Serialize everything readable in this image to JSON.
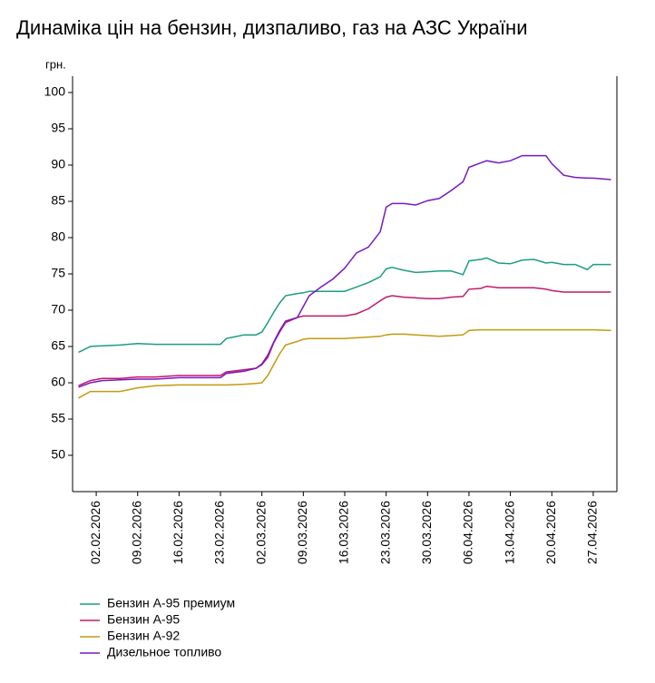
{
  "chart_data": {
    "type": "line",
    "title": "Динаміка цін на бензин, дизпаливо, газ на АЗС України",
    "y_label": "грн.",
    "x": [
      "30.01.2026",
      "01.02.2026",
      "03.02.2026",
      "06.02.2026",
      "09.02.2026",
      "12.02.2026",
      "16.02.2026",
      "20.02.2026",
      "23.02.2026",
      "24.02.2026",
      "27.02.2026",
      "01.03.2026",
      "02.03.2026",
      "03.03.2026",
      "04.03.2026",
      "05.03.2026",
      "06.03.2026",
      "08.03.2026",
      "09.03.2026",
      "10.03.2026",
      "12.03.2026",
      "14.03.2026",
      "16.03.2026",
      "18.03.2026",
      "20.03.2026",
      "22.03.2026",
      "23.03.2026",
      "24.03.2026",
      "26.03.2026",
      "28.03.2026",
      "30.03.2026",
      "01.04.2026",
      "03.04.2026",
      "05.04.2026",
      "06.04.2026",
      "08.04.2026",
      "09.04.2026",
      "11.04.2026",
      "13.04.2026",
      "15.04.2026",
      "17.04.2026",
      "19.04.2026",
      "20.04.2026",
      "22.04.2026",
      "24.04.2026",
      "26.04.2026",
      "27.04.2026",
      "30.04.2026"
    ],
    "series": [
      {
        "name": "Бензин А-95 премиум",
        "color": "#1a9e80",
        "values": [
          64.2,
          65.0,
          65.1,
          65.2,
          65.4,
          65.3,
          65.3,
          65.3,
          65.3,
          66.1,
          66.6,
          66.6,
          67.0,
          68.3,
          69.7,
          71.0,
          72.0,
          72.3,
          72.4,
          72.6,
          72.6,
          72.6,
          72.6,
          73.2,
          73.8,
          74.6,
          75.7,
          75.9,
          75.5,
          75.2,
          75.3,
          75.4,
          75.4,
          74.9,
          76.8,
          77.0,
          77.2,
          76.5,
          76.4,
          76.9,
          77.0,
          76.5,
          76.6,
          76.3,
          76.3,
          75.6,
          76.3,
          76.3
        ]
      },
      {
        "name": "Бензин А-95",
        "color": "#c2186b",
        "values": [
          59.6,
          60.3,
          60.6,
          60.6,
          60.8,
          60.8,
          61.0,
          61.0,
          61.0,
          61.5,
          61.8,
          62.0,
          62.5,
          63.5,
          65.5,
          67.0,
          68.3,
          69.0,
          69.2,
          69.2,
          69.2,
          69.2,
          69.2,
          69.5,
          70.2,
          71.3,
          71.8,
          72.0,
          71.8,
          71.7,
          71.6,
          71.6,
          71.8,
          71.9,
          72.9,
          73.0,
          73.3,
          73.1,
          73.1,
          73.1,
          73.1,
          72.9,
          72.7,
          72.5,
          72.5,
          72.5,
          72.5,
          72.5
        ]
      },
      {
        "name": "Бензин А-92",
        "color": "#c59a0e",
        "values": [
          57.9,
          58.8,
          58.8,
          58.8,
          59.3,
          59.6,
          59.7,
          59.7,
          59.7,
          59.7,
          59.8,
          59.9,
          60.0,
          61.0,
          62.5,
          64.0,
          65.2,
          65.7,
          66.0,
          66.1,
          66.1,
          66.1,
          66.1,
          66.2,
          66.3,
          66.4,
          66.6,
          66.7,
          66.7,
          66.6,
          66.5,
          66.4,
          66.5,
          66.6,
          67.2,
          67.3,
          67.3,
          67.3,
          67.3,
          67.3,
          67.3,
          67.3,
          67.3,
          67.3,
          67.3,
          67.3,
          67.3,
          67.2
        ]
      },
      {
        "name": "Дизельное топливо",
        "color": "#7719c4",
        "values": [
          59.4,
          60.0,
          60.3,
          60.4,
          60.5,
          60.5,
          60.7,
          60.7,
          60.7,
          61.3,
          61.6,
          62.0,
          62.6,
          63.8,
          65.6,
          67.2,
          68.5,
          69.0,
          70.5,
          72.0,
          73.2,
          74.3,
          75.8,
          77.9,
          78.7,
          80.8,
          84.2,
          84.7,
          84.7,
          84.5,
          85.1,
          85.4,
          86.5,
          87.7,
          89.7,
          90.3,
          90.6,
          90.3,
          90.6,
          91.3,
          91.3,
          91.3,
          90.2,
          88.6,
          88.3,
          88.2,
          88.2,
          88.0
        ]
      }
    ],
    "xlim": [
      "29.01.2026",
      "01.05.2026"
    ],
    "xticks": [
      "02.02.2026",
      "09.02.2026",
      "16.02.2026",
      "23.02.2026",
      "02.03.2026",
      "09.03.2026",
      "16.03.2026",
      "23.03.2026",
      "30.03.2026",
      "06.04.2026",
      "13.04.2026",
      "20.04.2026",
      "27.04.2026"
    ],
    "ylim": [
      45,
      100
    ],
    "yticks": [
      50,
      55,
      60,
      65,
      70,
      75,
      80,
      85,
      90,
      95,
      100
    ],
    "grid": false
  }
}
